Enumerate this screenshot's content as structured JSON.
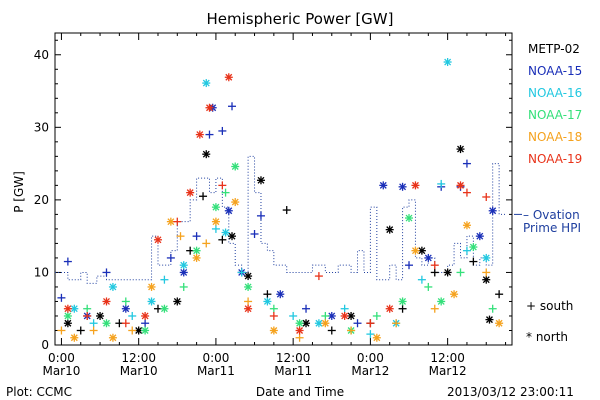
{
  "title": "Hemispheric Power [GW]",
  "ylabel": "P [GW]",
  "xlabel": "Date and Time",
  "footer": {
    "plot_by": "Plot: CCMC",
    "timestamp": "2013/03/12 23:00:11"
  },
  "legend": {
    "satellites": [
      {
        "name": "METP-02",
        "color": "#000000"
      },
      {
        "name": "NOAA-15",
        "color": "#1a2fb8"
      },
      {
        "name": "NOAA-16",
        "color": "#22c8e0"
      },
      {
        "name": "NOAA-17",
        "color": "#34e07a"
      },
      {
        "name": "NOAA-18",
        "color": "#f5a21e"
      },
      {
        "name": "NOAA-19",
        "color": "#e8331a"
      }
    ],
    "ovation_line1": "– Ovation",
    "ovation_line2": "Prime HPI",
    "south": "+ south",
    "north": "* north"
  },
  "chart_data": {
    "type": "scatter",
    "title": "Hemispheric Power [GW]",
    "xlabel": "Date and Time",
    "ylabel": "P [GW]",
    "x_unit": "hours since 2013-03-10 00:00",
    "xlim": [
      -1,
      70
    ],
    "ylim": [
      0,
      43
    ],
    "yticks": [
      0,
      10,
      20,
      30,
      40
    ],
    "xticks": [
      {
        "h": 0,
        "top": "0:00",
        "bottom": "Mar10"
      },
      {
        "h": 12,
        "top": "12:00",
        "bottom": "Mar10"
      },
      {
        "h": 24,
        "top": "0:00",
        "bottom": "Mar11"
      },
      {
        "h": 36,
        "top": "12:00",
        "bottom": "Mar11"
      },
      {
        "h": 48,
        "top": "0:00",
        "bottom": "Mar12"
      },
      {
        "h": 60,
        "top": "12:00",
        "bottom": "Mar12"
      }
    ],
    "series": [
      {
        "name": "METP-02",
        "color": "#000000",
        "points": [
          {
            "x": 1,
            "y": 3,
            "m": "*"
          },
          {
            "x": 3,
            "y": 2,
            "m": "+"
          },
          {
            "x": 6,
            "y": 4,
            "m": "*"
          },
          {
            "x": 9,
            "y": 3,
            "m": "+"
          },
          {
            "x": 12,
            "y": 2,
            "m": "*"
          },
          {
            "x": 15,
            "y": 5,
            "m": "+"
          },
          {
            "x": 18,
            "y": 6,
            "m": "*"
          },
          {
            "x": 20,
            "y": 13,
            "m": "+"
          },
          {
            "x": 22,
            "y": 20.5,
            "m": "+"
          },
          {
            "x": 22.5,
            "y": 26.3,
            "m": "*"
          },
          {
            "x": 25,
            "y": 14.5,
            "m": "+"
          },
          {
            "x": 26.5,
            "y": 15,
            "m": "*"
          },
          {
            "x": 29,
            "y": 9.5,
            "m": "*"
          },
          {
            "x": 31,
            "y": 22.7,
            "m": "*"
          },
          {
            "x": 32,
            "y": 7,
            "m": "+"
          },
          {
            "x": 35,
            "y": 18.6,
            "m": "+"
          },
          {
            "x": 38,
            "y": 3,
            "m": "*"
          },
          {
            "x": 42,
            "y": 2,
            "m": "+"
          },
          {
            "x": 45,
            "y": 4,
            "m": "*"
          },
          {
            "x": 48,
            "y": 3,
            "m": "+"
          },
          {
            "x": 51,
            "y": 15.9,
            "m": "*"
          },
          {
            "x": 53,
            "y": 5,
            "m": "+"
          },
          {
            "x": 56,
            "y": 13,
            "m": "*"
          },
          {
            "x": 58,
            "y": 10,
            "m": "+"
          },
          {
            "x": 60,
            "y": 10,
            "m": "*"
          },
          {
            "x": 62,
            "y": 27,
            "m": "*"
          },
          {
            "x": 64,
            "y": 11.5,
            "m": "+"
          },
          {
            "x": 66,
            "y": 9,
            "m": "*"
          },
          {
            "x": 68,
            "y": 7,
            "m": "+"
          },
          {
            "x": 66.5,
            "y": 3.5,
            "m": "*"
          }
        ]
      },
      {
        "name": "NOAA-15",
        "color": "#1a2fb8",
        "points": [
          {
            "x": 0,
            "y": 6.5,
            "m": "+"
          },
          {
            "x": 1,
            "y": 11.5,
            "m": "+"
          },
          {
            "x": 4,
            "y": 4,
            "m": "*"
          },
          {
            "x": 7,
            "y": 10,
            "m": "+"
          },
          {
            "x": 10,
            "y": 5,
            "m": "*"
          },
          {
            "x": 13,
            "y": 3,
            "m": "+"
          },
          {
            "x": 17,
            "y": 12,
            "m": "+"
          },
          {
            "x": 19,
            "y": 10,
            "m": "*"
          },
          {
            "x": 21,
            "y": 15,
            "m": "+"
          },
          {
            "x": 23,
            "y": 29,
            "m": "+"
          },
          {
            "x": 23.5,
            "y": 32.7,
            "m": "*"
          },
          {
            "x": 25,
            "y": 29.5,
            "m": "+"
          },
          {
            "x": 26.5,
            "y": 32.9,
            "m": "+"
          },
          {
            "x": 26,
            "y": 18.5,
            "m": "*"
          },
          {
            "x": 28,
            "y": 10,
            "m": "*"
          },
          {
            "x": 30,
            "y": 15.3,
            "m": "+"
          },
          {
            "x": 31,
            "y": 17.8,
            "m": "+"
          },
          {
            "x": 34,
            "y": 7,
            "m": "*"
          },
          {
            "x": 38,
            "y": 5,
            "m": "+"
          },
          {
            "x": 42,
            "y": 4,
            "m": "*"
          },
          {
            "x": 46,
            "y": 3,
            "m": "+"
          },
          {
            "x": 50,
            "y": 22,
            "m": "*"
          },
          {
            "x": 53,
            "y": 21.8,
            "m": "*"
          },
          {
            "x": 54,
            "y": 11,
            "m": "+"
          },
          {
            "x": 57,
            "y": 12,
            "m": "*"
          },
          {
            "x": 59,
            "y": 21.8,
            "m": "+"
          },
          {
            "x": 62,
            "y": 21.8,
            "m": "+"
          },
          {
            "x": 63,
            "y": 25,
            "m": "+"
          },
          {
            "x": 65,
            "y": 15,
            "m": "*"
          },
          {
            "x": 67,
            "y": 18.5,
            "m": "*"
          }
        ]
      },
      {
        "name": "NOAA-16",
        "color": "#22c8e0",
        "points": [
          {
            "x": 2,
            "y": 5,
            "m": "*"
          },
          {
            "x": 5,
            "y": 3,
            "m": "+"
          },
          {
            "x": 8,
            "y": 8,
            "m": "*"
          },
          {
            "x": 11,
            "y": 4,
            "m": "+"
          },
          {
            "x": 14,
            "y": 6,
            "m": "*"
          },
          {
            "x": 16,
            "y": 9,
            "m": "+"
          },
          {
            "x": 19,
            "y": 11,
            "m": "*"
          },
          {
            "x": 22.5,
            "y": 36.1,
            "m": "*"
          },
          {
            "x": 24,
            "y": 16,
            "m": "+"
          },
          {
            "x": 25.5,
            "y": 15.5,
            "m": "*"
          },
          {
            "x": 28,
            "y": 10,
            "m": "+"
          },
          {
            "x": 32,
            "y": 6,
            "m": "*"
          },
          {
            "x": 36,
            "y": 4,
            "m": "+"
          },
          {
            "x": 40,
            "y": 3,
            "m": "*"
          },
          {
            "x": 44,
            "y": 5,
            "m": "+"
          },
          {
            "x": 48,
            "y": 1.5,
            "m": "+"
          },
          {
            "x": 52,
            "y": 3,
            "m": "*"
          },
          {
            "x": 56,
            "y": 9,
            "m": "+"
          },
          {
            "x": 59,
            "y": 22.2,
            "m": "+"
          },
          {
            "x": 60,
            "y": 39,
            "m": "*"
          },
          {
            "x": 63,
            "y": 13,
            "m": "+"
          },
          {
            "x": 66,
            "y": 12,
            "m": "*"
          }
        ]
      },
      {
        "name": "NOAA-17",
        "color": "#34e07a",
        "points": [
          {
            "x": 1,
            "y": 4,
            "m": "*"
          },
          {
            "x": 4,
            "y": 5,
            "m": "+"
          },
          {
            "x": 7,
            "y": 3,
            "m": "*"
          },
          {
            "x": 10,
            "y": 6,
            "m": "+"
          },
          {
            "x": 13,
            "y": 2,
            "m": "*"
          },
          {
            "x": 16,
            "y": 5,
            "m": "*"
          },
          {
            "x": 19,
            "y": 8,
            "m": "+"
          },
          {
            "x": 21,
            "y": 13,
            "m": "*"
          },
          {
            "x": 24,
            "y": 19,
            "m": "*"
          },
          {
            "x": 25.5,
            "y": 21,
            "m": "+"
          },
          {
            "x": 27,
            "y": 24.6,
            "m": "*"
          },
          {
            "x": 29,
            "y": 8,
            "m": "*"
          },
          {
            "x": 33,
            "y": 5,
            "m": "+"
          },
          {
            "x": 37,
            "y": 3,
            "m": "*"
          },
          {
            "x": 41,
            "y": 4,
            "m": "+"
          },
          {
            "x": 45,
            "y": 2,
            "m": "*"
          },
          {
            "x": 49,
            "y": 4,
            "m": "+"
          },
          {
            "x": 53,
            "y": 6,
            "m": "*"
          },
          {
            "x": 54,
            "y": 17.5,
            "m": "*"
          },
          {
            "x": 57,
            "y": 8,
            "m": "+"
          },
          {
            "x": 59,
            "y": 6,
            "m": "*"
          },
          {
            "x": 62,
            "y": 10,
            "m": "+"
          },
          {
            "x": 64,
            "y": 13.5,
            "m": "*"
          },
          {
            "x": 67,
            "y": 5,
            "m": "+"
          }
        ]
      },
      {
        "name": "NOAA-18",
        "color": "#f5a21e",
        "points": [
          {
            "x": 0,
            "y": 2,
            "m": "+"
          },
          {
            "x": 2,
            "y": 1,
            "m": "*"
          },
          {
            "x": 5,
            "y": 2,
            "m": "+"
          },
          {
            "x": 8,
            "y": 1,
            "m": "*"
          },
          {
            "x": 11,
            "y": 2,
            "m": "+"
          },
          {
            "x": 14,
            "y": 8,
            "m": "*"
          },
          {
            "x": 17,
            "y": 17,
            "m": "*"
          },
          {
            "x": 18.5,
            "y": 15,
            "m": "+"
          },
          {
            "x": 21,
            "y": 12,
            "m": "*"
          },
          {
            "x": 22.5,
            "y": 14,
            "m": "+"
          },
          {
            "x": 24,
            "y": 17,
            "m": "*"
          },
          {
            "x": 27,
            "y": 19.7,
            "m": "*"
          },
          {
            "x": 29,
            "y": 6,
            "m": "+"
          },
          {
            "x": 33,
            "y": 2,
            "m": "*"
          },
          {
            "x": 37,
            "y": 1,
            "m": "+"
          },
          {
            "x": 41,
            "y": 3,
            "m": "*"
          },
          {
            "x": 45,
            "y": 2,
            "m": "+"
          },
          {
            "x": 49,
            "y": 1,
            "m": "*"
          },
          {
            "x": 52,
            "y": 3,
            "m": "+"
          },
          {
            "x": 55,
            "y": 13,
            "m": "*"
          },
          {
            "x": 58,
            "y": 5,
            "m": "+"
          },
          {
            "x": 61,
            "y": 7,
            "m": "*"
          },
          {
            "x": 63,
            "y": 16.5,
            "m": "*"
          },
          {
            "x": 66,
            "y": 10,
            "m": "+"
          },
          {
            "x": 68,
            "y": 3,
            "m": "*"
          }
        ]
      },
      {
        "name": "NOAA-19",
        "color": "#e8331a",
        "points": [
          {
            "x": 1,
            "y": 5,
            "m": "*"
          },
          {
            "x": 4,
            "y": 4,
            "m": "+"
          },
          {
            "x": 7,
            "y": 6,
            "m": "*"
          },
          {
            "x": 10,
            "y": 3,
            "m": "+"
          },
          {
            "x": 13,
            "y": 4,
            "m": "*"
          },
          {
            "x": 15,
            "y": 14.5,
            "m": "*"
          },
          {
            "x": 18,
            "y": 17,
            "m": "+"
          },
          {
            "x": 20,
            "y": 21,
            "m": "*"
          },
          {
            "x": 21.5,
            "y": 29,
            "m": "*"
          },
          {
            "x": 23,
            "y": 32.7,
            "m": "*"
          },
          {
            "x": 26,
            "y": 36.9,
            "m": "*"
          },
          {
            "x": 25,
            "y": 22,
            "m": "+"
          },
          {
            "x": 29,
            "y": 5,
            "m": "*"
          },
          {
            "x": 33,
            "y": 4,
            "m": "+"
          },
          {
            "x": 37,
            "y": 2,
            "m": "*"
          },
          {
            "x": 40,
            "y": 9.5,
            "m": "+"
          },
          {
            "x": 44,
            "y": 4,
            "m": "*"
          },
          {
            "x": 48,
            "y": 3,
            "m": "+"
          },
          {
            "x": 51,
            "y": 5,
            "m": "*"
          },
          {
            "x": 55,
            "y": 22,
            "m": "*"
          },
          {
            "x": 58,
            "y": 11,
            "m": "+"
          },
          {
            "x": 62,
            "y": 22,
            "m": "*"
          },
          {
            "x": 63,
            "y": 21,
            "m": "+"
          },
          {
            "x": 66,
            "y": 20.4,
            "m": "+"
          }
        ]
      }
    ],
    "ovation": {
      "name": "Ovation Prime HPI",
      "color": "#1f3f9f",
      "style": "dotted-step",
      "end_value": 18,
      "steps": [
        {
          "x": -1,
          "y": 10
        },
        {
          "x": 1,
          "y": 9
        },
        {
          "x": 3,
          "y": 10
        },
        {
          "x": 4,
          "y": 8.5
        },
        {
          "x": 5.5,
          "y": 9.5
        },
        {
          "x": 7,
          "y": 9
        },
        {
          "x": 13,
          "y": 9
        },
        {
          "x": 14,
          "y": 15
        },
        {
          "x": 15,
          "y": 11
        },
        {
          "x": 17,
          "y": 13
        },
        {
          "x": 18,
          "y": 17
        },
        {
          "x": 20,
          "y": 20
        },
        {
          "x": 21,
          "y": 23
        },
        {
          "x": 23,
          "y": 21
        },
        {
          "x": 24,
          "y": 23
        },
        {
          "x": 25,
          "y": 19
        },
        {
          "x": 26,
          "y": 14
        },
        {
          "x": 27,
          "y": 11
        },
        {
          "x": 28,
          "y": 10
        },
        {
          "x": 29,
          "y": 26
        },
        {
          "x": 30,
          "y": 21
        },
        {
          "x": 31,
          "y": 14
        },
        {
          "x": 32,
          "y": 13
        },
        {
          "x": 33,
          "y": 11
        },
        {
          "x": 35,
          "y": 10
        },
        {
          "x": 39,
          "y": 11
        },
        {
          "x": 41,
          "y": 10
        },
        {
          "x": 43,
          "y": 11
        },
        {
          "x": 45,
          "y": 10
        },
        {
          "x": 46,
          "y": 13
        },
        {
          "x": 47,
          "y": 10
        },
        {
          "x": 48,
          "y": 19
        },
        {
          "x": 49,
          "y": 9
        },
        {
          "x": 51,
          "y": 11
        },
        {
          "x": 52,
          "y": 9
        },
        {
          "x": 53,
          "y": 19
        },
        {
          "x": 54,
          "y": 20
        },
        {
          "x": 55,
          "y": 12
        },
        {
          "x": 56,
          "y": 11
        },
        {
          "x": 57,
          "y": 12
        },
        {
          "x": 58,
          "y": 10
        },
        {
          "x": 59,
          "y": 10
        },
        {
          "x": 60,
          "y": 11
        },
        {
          "x": 61,
          "y": 14
        },
        {
          "x": 62,
          "y": 12
        },
        {
          "x": 63,
          "y": 15
        },
        {
          "x": 64,
          "y": 11
        },
        {
          "x": 65,
          "y": 12
        },
        {
          "x": 66,
          "y": 11
        },
        {
          "x": 67,
          "y": 25
        },
        {
          "x": 68,
          "y": 18
        }
      ]
    }
  }
}
